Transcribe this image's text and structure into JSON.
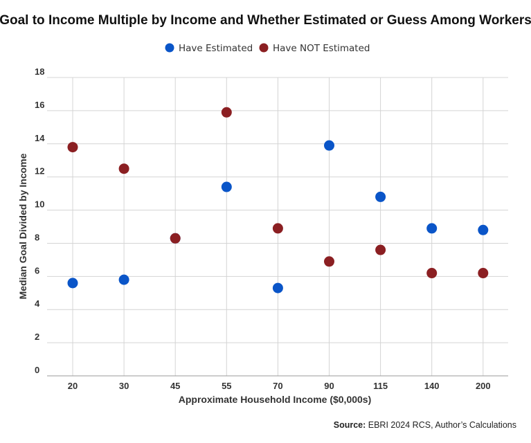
{
  "colors": {
    "have_estimated": "#0a55c8",
    "have_not_estimated": "#8b1f22",
    "grid": "#d4d4d4",
    "text": "#333333"
  },
  "chart_data": {
    "type": "scatter",
    "title": "Goal to Income Multiple by Income and Whether Estimated or Guess Among Workers",
    "xlabel": "Approximate Household Income ($0,000s)",
    "ylabel": "Median Goal Divided by Income",
    "categories": [
      "20",
      "30",
      "45",
      "55",
      "70",
      "90",
      "115",
      "140",
      "200"
    ],
    "ylim": [
      0,
      18
    ],
    "yticks": [
      "0",
      "2",
      "4",
      "6",
      "8",
      "10",
      "12",
      "14",
      "16",
      "18"
    ],
    "grid": true,
    "legend_position": "top-center",
    "series": [
      {
        "name": "Have Estimated",
        "color": "#0a55c8",
        "values": [
          5.6,
          5.8,
          8.3,
          11.4,
          5.3,
          13.9,
          10.8,
          8.9,
          8.8
        ]
      },
      {
        "name": "Have NOT Estimated",
        "color": "#8b1f22",
        "values": [
          13.8,
          12.5,
          8.3,
          15.9,
          8.9,
          6.9,
          7.6,
          6.2,
          6.2
        ]
      }
    ]
  },
  "source": {
    "label": "Source:",
    "text": " EBRI 2024 RCS, Author’s Calculations"
  }
}
